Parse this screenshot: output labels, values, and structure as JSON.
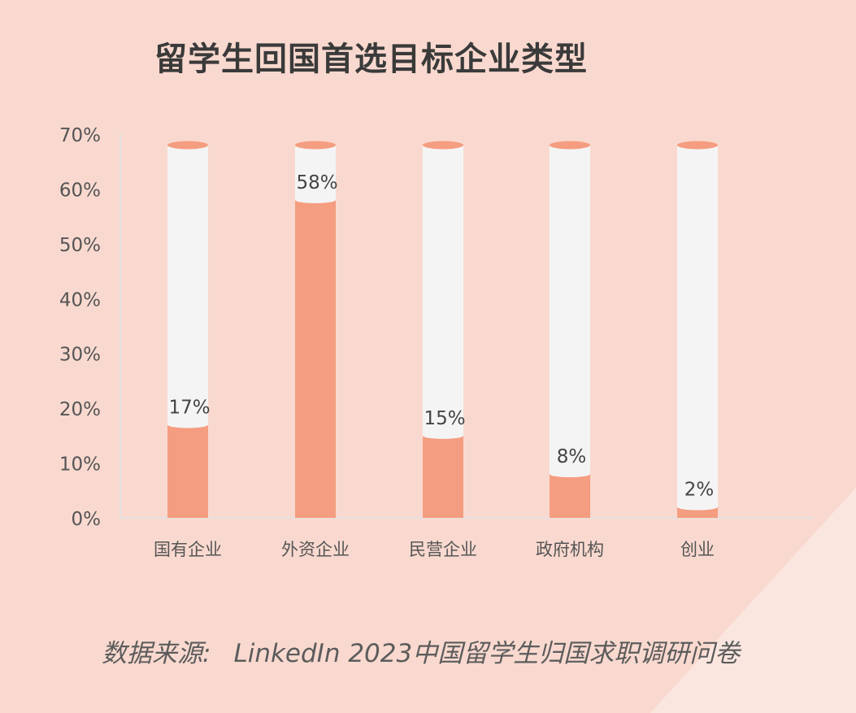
{
  "title": "留学生回国首选目标企业类型",
  "source": {
    "prefix": "数据来源:",
    "text": "LinkedIn 2023中国留学生归国求职调研问卷"
  },
  "colors": {
    "background": "#f9d9cf",
    "bar_fill": "#f59d80",
    "column_track": "#f4f4f5",
    "axis_text": "#555555"
  },
  "chart_data": {
    "type": "bar",
    "title": "留学生回国首选目标企业类型",
    "categories": [
      "国有企业",
      "外资企业",
      "民营企业",
      "政府机构",
      "创业"
    ],
    "values": [
      17,
      58,
      15,
      8,
      2
    ],
    "value_labels": [
      "17%",
      "58%",
      "15%",
      "8%",
      "2%"
    ],
    "ylim": [
      0,
      70
    ],
    "yticks": [
      "0%",
      "10%",
      "20%",
      "30%",
      "40%",
      "50%",
      "60%",
      "70%"
    ],
    "xlabel": "",
    "ylabel": "",
    "grid": false
  }
}
